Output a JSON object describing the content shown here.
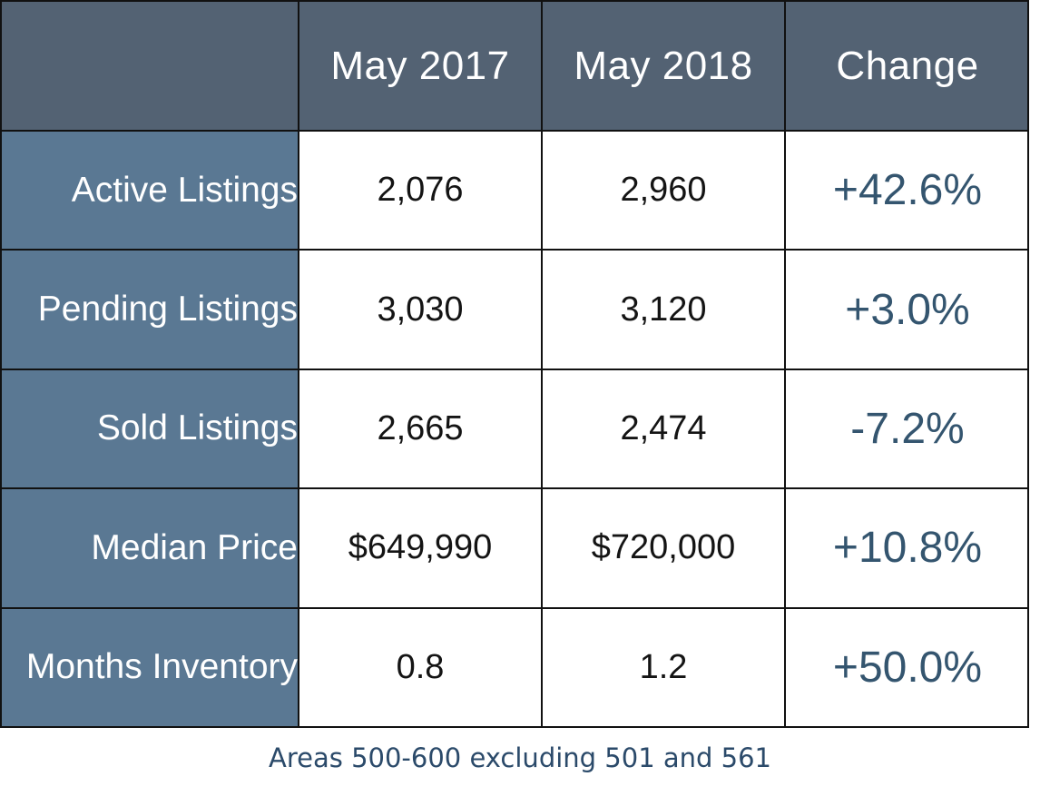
{
  "chart_data": {
    "type": "table",
    "columns": [
      "",
      "May 2017",
      "May 2018",
      "Change"
    ],
    "rows": [
      {
        "label": "Active Listings",
        "may_2017": "2,076",
        "may_2018": "2,960",
        "change": "+42.6%"
      },
      {
        "label": "Pending Listings",
        "may_2017": "3,030",
        "may_2018": "3,120",
        "change": "+3.0%"
      },
      {
        "label": "Sold Listings",
        "may_2017": "2,665",
        "may_2018": "2,474",
        "change": "-7.2%"
      },
      {
        "label": "Median Price",
        "may_2017": "$649,990",
        "may_2018": "$720,000",
        "change": "+10.8%"
      },
      {
        "label": "Months Inventory",
        "may_2017": "0.8",
        "may_2018": "1.2",
        "change": "+50.0%"
      }
    ],
    "footnote": "Areas 500-600 excluding 501 and 561"
  },
  "colors": {
    "header_bg": "#536273",
    "row_label_bg": "#5a7893",
    "change_text": "#34556f",
    "footnote_text": "#2b4a6a",
    "grid_lines": "#111111"
  }
}
